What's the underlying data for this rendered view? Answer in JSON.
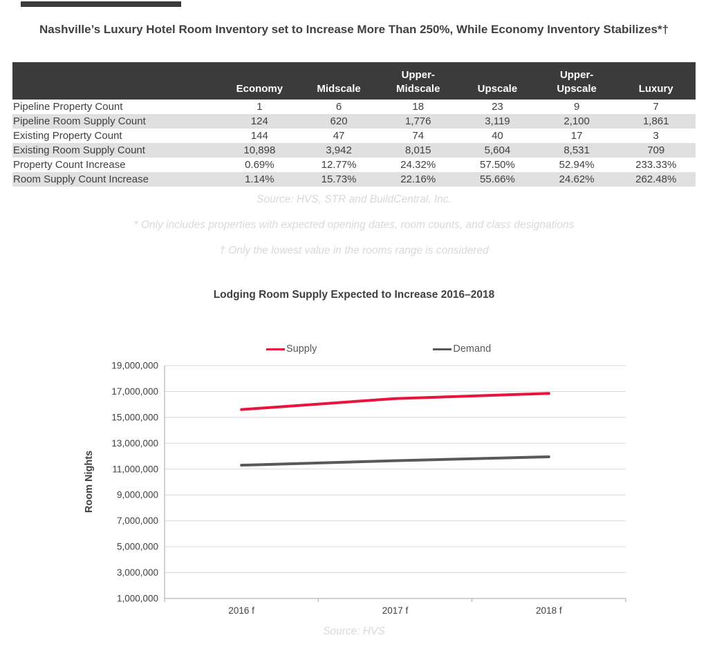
{
  "page": {
    "title": "Nashville’s Luxury Hotel Room Inventory set to Increase More Than 250%, While Economy Inventory Stabilizes*†"
  },
  "table": {
    "row_header_label": "",
    "columns": [
      "Economy",
      "Midscale",
      "Upper-Midscale",
      "Upscale",
      "Upper-Upscale",
      "Luxury"
    ],
    "rows": [
      {
        "label": "Pipeline Property Count",
        "values": [
          "1",
          "6",
          "18",
          "23",
          "9",
          "7"
        ]
      },
      {
        "label": "Pipeline Room Supply Count",
        "values": [
          "124",
          "620",
          "1,776",
          "3,119",
          "2,100",
          "1,861"
        ]
      },
      {
        "label": "Existing Property Count",
        "values": [
          "144",
          "47",
          "74",
          "40",
          "17",
          "3"
        ]
      },
      {
        "label": "Existing Room Supply Count",
        "values": [
          "10,898",
          "3,942",
          "8,015",
          "5,604",
          "8,531",
          "709"
        ]
      },
      {
        "label": "Property Count Increase",
        "values": [
          "0.69%",
          "12.77%",
          "24.32%",
          "57.50%",
          "52.94%",
          "233.33%"
        ]
      },
      {
        "label": "Room Supply Count Increase",
        "values": [
          "1.14%",
          "15.73%",
          "22.16%",
          "55.66%",
          "24.62%",
          "262.48%"
        ]
      }
    ],
    "notes": [
      "Source: HVS, STR and BuildCentral, Inc.",
      "* Only includes properties with expected opening dates, room counts, and class designations",
      "† Only the lowest value in the rooms range is considered"
    ]
  },
  "chart_data": {
    "type": "line",
    "title": "Lodging Room Supply Expected to Increase 2016–2018",
    "x": [
      "2016 f",
      "2017 f",
      "2018 f"
    ],
    "series": [
      {
        "name": "Supply",
        "color": "#e8143c",
        "values": [
          15600000,
          16450000,
          16850000
        ]
      },
      {
        "name": "Demand",
        "color": "#595959",
        "values": [
          11300000,
          11650000,
          11950000
        ]
      }
    ],
    "ylabel": "Room Nights",
    "ylim": [
      1000000,
      19000000
    ],
    "ytick_step": 2000000,
    "grid": true,
    "legend_position": "top",
    "source": "Source: HVS"
  },
  "colors": {
    "header_bg": "#3b3b3c",
    "row_alt_bg": "#e0e0e0",
    "text": "#3f3f3f",
    "muted": "#d9d9d9",
    "gridline": "#d9d9d9",
    "axis": "#a6a6a6"
  }
}
